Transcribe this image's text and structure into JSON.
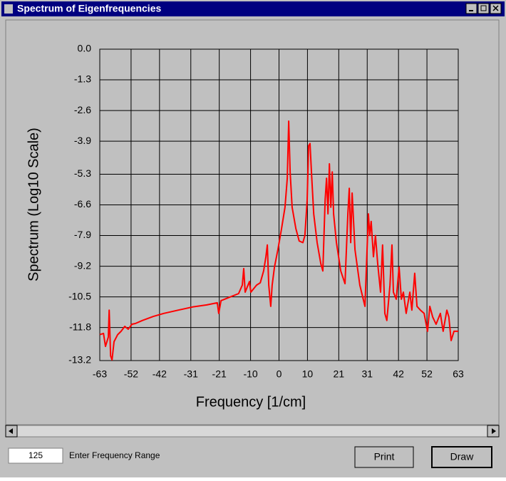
{
  "window": {
    "title": "Spectrum of Eigenfrequencies"
  },
  "chart_data": {
    "type": "line",
    "ylabel": "Spectrum (Log10 Scale)",
    "xlabel": "Frequency [1/cm]",
    "color": "#ff0000",
    "grid": true,
    "log_scale": false,
    "xlim": [
      -63,
      63
    ],
    "ylim": [
      -13.2,
      0
    ],
    "xticks": [
      -63,
      -52,
      -42,
      -31,
      -21,
      -10,
      0,
      10,
      21,
      31,
      42,
      52,
      63
    ],
    "yticks": [
      {
        "value": 0,
        "label": "0.0"
      },
      -1.3,
      -2.6,
      -3.9,
      -5.3,
      -6.6,
      -7.9,
      -9.2,
      -10.5,
      -11.8,
      -13.2
    ],
    "x": [
      -63.0,
      -61.7,
      -61.0,
      -60.0,
      -59.7,
      -59.2,
      -58.7,
      -58.0,
      -56.7,
      -55.5,
      -54.2,
      -53.0,
      -51.7,
      -50.5,
      -48.0,
      -44.2,
      -40.5,
      -35.4,
      -30.4,
      -25.4,
      -21.7,
      -21.2,
      -20.4,
      -17.9,
      -14.2,
      -12.9,
      -12.4,
      -11.9,
      -10.4,
      -9.9,
      -7.9,
      -6.6,
      -5.4,
      -4.6,
      -4.1,
      -3.6,
      -2.9,
      -2.4,
      -1.6,
      -0.4,
      0.9,
      2.1,
      2.9,
      3.4,
      3.9,
      4.6,
      5.9,
      7.1,
      8.4,
      9.1,
      9.9,
      10.4,
      10.9,
      11.4,
      12.2,
      13.4,
      14.7,
      15.4,
      16.2,
      16.7,
      17.2,
      17.7,
      18.2,
      18.7,
      19.2,
      20.2,
      21.7,
      23.2,
      24.2,
      24.7,
      25.2,
      25.7,
      26.2,
      26.7,
      28.4,
      30.2,
      31.4,
      31.9,
      32.4,
      33.2,
      33.9,
      34.7,
      35.7,
      36.4,
      37.2,
      37.9,
      39.0,
      39.7,
      40.2,
      41.2,
      42.2,
      43.0,
      43.7,
      44.7,
      46.0,
      46.7,
      47.7,
      48.5,
      49.7,
      51.0,
      52.2,
      53.0,
      54.0,
      55.2,
      56.7,
      57.7,
      59.0,
      59.7,
      60.5,
      61.5,
      63.0
    ],
    "values": [
      -12.1,
      -12.05,
      -12.6,
      -12.2,
      -11.06,
      -13.0,
      -13.17,
      -12.4,
      -12.1,
      -11.96,
      -11.75,
      -11.87,
      -11.66,
      -11.63,
      -11.5,
      -11.33,
      -11.2,
      -11.06,
      -10.93,
      -10.84,
      -10.75,
      -11.2,
      -10.66,
      -10.54,
      -10.36,
      -10.0,
      -9.3,
      -10.3,
      -9.85,
      -10.3,
      -10.0,
      -9.9,
      -9.4,
      -8.8,
      -8.3,
      -10.0,
      -10.9,
      -10.0,
      -9.24,
      -8.5,
      -7.6,
      -6.7,
      -5.47,
      -3.05,
      -5.2,
      -6.7,
      -7.6,
      -8.13,
      -8.2,
      -7.9,
      -6.4,
      -4.1,
      -4.0,
      -5.2,
      -6.98,
      -8.2,
      -9.1,
      -9.4,
      -6.4,
      -5.47,
      -6.98,
      -4.86,
      -6.7,
      -5.2,
      -6.98,
      -8.2,
      -9.4,
      -9.94,
      -6.98,
      -5.9,
      -8.2,
      -6.1,
      -7.3,
      -8.5,
      -10.0,
      -10.9,
      -6.98,
      -7.9,
      -7.3,
      -8.8,
      -7.9,
      -9.1,
      -10.3,
      -8.3,
      -11.2,
      -11.5,
      -10.0,
      -8.3,
      -10.3,
      -10.6,
      -9.24,
      -10.6,
      -10.3,
      -11.2,
      -10.3,
      -11.06,
      -9.5,
      -10.9,
      -11.06,
      -11.2,
      -11.96,
      -10.9,
      -11.35,
      -11.66,
      -11.2,
      -11.96,
      -11.06,
      -11.35,
      -12.35,
      -11.96,
      -11.96
    ]
  },
  "controls": {
    "range_input": "125",
    "range_label": "Enter Frequency Range",
    "print_button": "Print",
    "draw_button": "Draw"
  }
}
